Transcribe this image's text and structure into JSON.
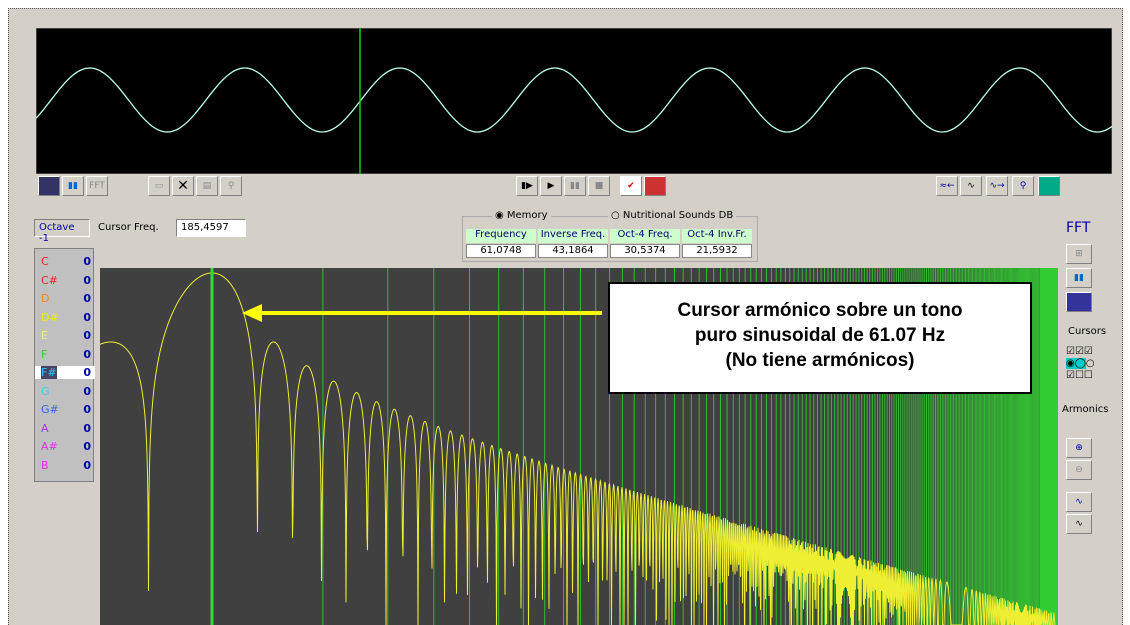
{
  "toolbar": {
    "fft_button": "FFT"
  },
  "octave": "Octave -1",
  "cursor_freq": {
    "label": "Cursor Freq.",
    "value": "185,4597"
  },
  "source": {
    "options": [
      "Memory",
      "Nutritional Sounds DB"
    ]
  },
  "table": {
    "headers": [
      "Frequency",
      "Inverse Freq.",
      "Oct-4 Freq.",
      "Oct-4 Inv.Fr."
    ],
    "values": [
      "61,0748",
      "43,1864",
      "30,5374",
      "21,5932"
    ]
  },
  "notes": [
    {
      "name": "C",
      "value": 0
    },
    {
      "name": "C#",
      "value": 0
    },
    {
      "name": "D",
      "value": 0
    },
    {
      "name": "D#",
      "value": 0
    },
    {
      "name": "E",
      "value": 0
    },
    {
      "name": "F",
      "value": 0
    },
    {
      "name": "F#",
      "value": 0
    },
    {
      "name": "G",
      "value": 0
    },
    {
      "name": "G#",
      "value": 0
    },
    {
      "name": "A",
      "value": 0
    },
    {
      "name": "A#",
      "value": 0
    },
    {
      "name": "B",
      "value": 0
    }
  ],
  "side": {
    "title": "FFT",
    "cursors": "Cursors",
    "armonics": "Armonics"
  },
  "annotation": [
    "Cursor armónico sobre un tono",
    "puro sinusoidal de 61.07 Hz",
    "(No tiene armónicos)"
  ]
}
